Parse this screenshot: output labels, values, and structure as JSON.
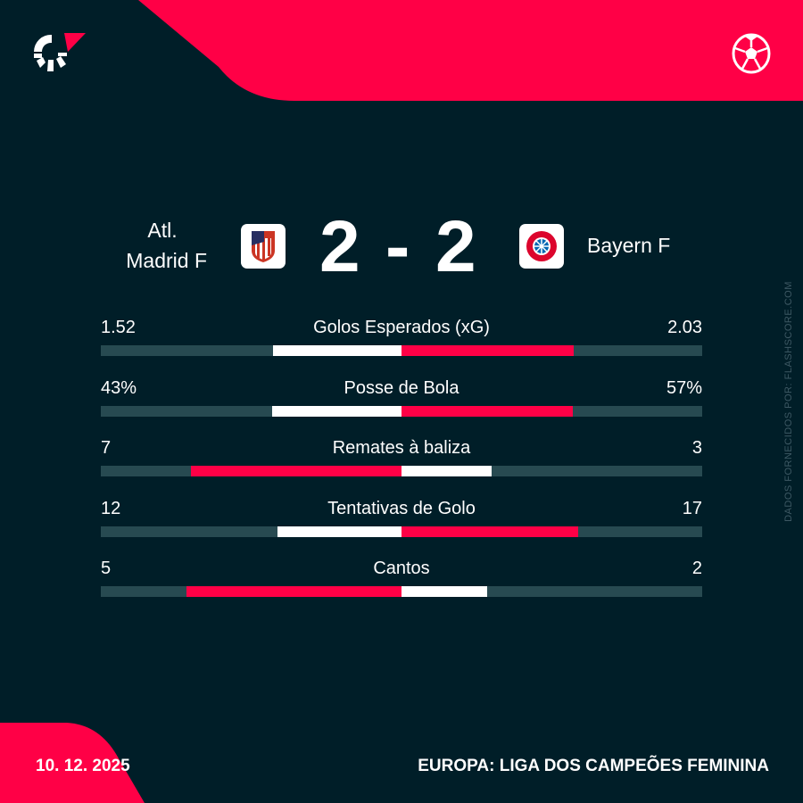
{
  "colors": {
    "background": "#001e28",
    "accent": "#ff0046",
    "track": "#274a51",
    "neutral": "#ffffff"
  },
  "header": {
    "logo_icon": "flashscore-logo",
    "sport_icon": "soccer-ball-icon"
  },
  "match": {
    "home": {
      "name_line1": "Atl.",
      "name_line2": "Madrid F",
      "crest": "atletico-madrid-crest"
    },
    "away": {
      "name": "Bayern F",
      "crest": "bayern-munich-crest"
    },
    "score_home": "2",
    "separator": "-",
    "score_away": "2"
  },
  "stats": [
    {
      "label": "Golos Esperados (xG)",
      "home": "1.52",
      "away": "2.03",
      "home_value": 1.52,
      "away_value": 2.03
    },
    {
      "label": "Posse de Bola",
      "home": "43%",
      "away": "57%",
      "home_value": 43,
      "away_value": 57
    },
    {
      "label": "Remates à baliza",
      "home": "7",
      "away": "3",
      "home_value": 7,
      "away_value": 3
    },
    {
      "label": "Tentativas de Golo",
      "home": "12",
      "away": "17",
      "home_value": 12,
      "away_value": 17
    },
    {
      "label": "Cantos",
      "home": "5",
      "away": "2",
      "home_value": 5,
      "away_value": 2
    }
  ],
  "credit": "DADOS FORNECIDOS POR: FLASHSCORE.COM",
  "footer": {
    "date": "10. 12. 2025",
    "competition": "EUROPA: LIGA DOS CAMPEÕES FEMININA"
  }
}
